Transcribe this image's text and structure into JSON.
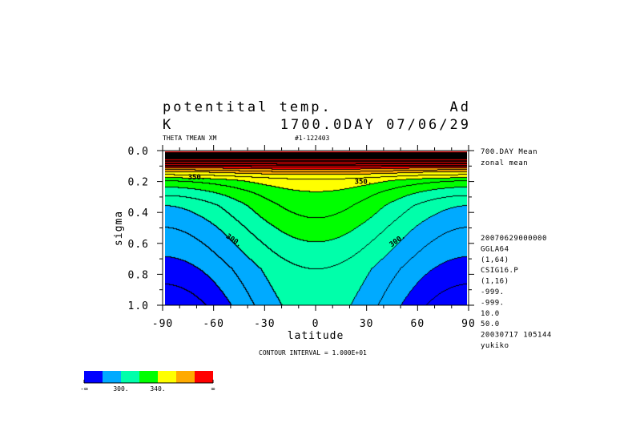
{
  "header": {
    "title": "potentital temp.",
    "title_right": "Ad",
    "units": "K",
    "time": "1700.0DAY 07/06/29",
    "variable": "THETA TMEAN XM",
    "run_id": "#1-122403"
  },
  "side_info": {
    "top": [
      "700.DAY Mean",
      "zonal mean"
    ],
    "bottom": [
      "20070629000000",
      "GGLA64",
      "(1,64)",
      "CSIG16.P",
      "(1,16)",
      "-999.",
      "-999.",
      "10.0",
      "50.0",
      "20030717 105144",
      "yukiko"
    ]
  },
  "contour_interval": "CONTOUR INTERVAL = 1.000E+01",
  "chart_data": {
    "type": "heatmap",
    "subtype": "filled contour",
    "xlabel": "latitude",
    "ylabel": "sigma",
    "xlim": [
      -90,
      90
    ],
    "ylim": [
      1.0,
      0.0
    ],
    "x_ticks": [
      "-90",
      "-60",
      "-30",
      "0",
      "30",
      "60",
      "90"
    ],
    "y_ticks": [
      "0.0",
      "0.2",
      "0.4",
      "0.6",
      "0.8",
      "1.0"
    ],
    "contour_interval": 10,
    "contour_labels": [
      {
        "text": "350.",
        "lat": -70,
        "sigma": 0.17
      },
      {
        "text": "350.",
        "lat": 28,
        "sigma": 0.2
      },
      {
        "text": "300.",
        "lat": -48,
        "sigma": 0.58
      },
      {
        "text": "300.",
        "lat": 48,
        "sigma": 0.58
      }
    ],
    "theta_equator": {
      "sigma": [
        0,
        0.05,
        0.1,
        0.15,
        0.18,
        0.26,
        0.43,
        0.585,
        0.76,
        1.0
      ],
      "theta": [
        600,
        450,
        390,
        360,
        350,
        340,
        330,
        320,
        310,
        305
      ]
    },
    "theta_pole": {
      "sigma": [
        0,
        0.05,
        0.1,
        0.13,
        0.17,
        0.19,
        0.23,
        0.285,
        0.35,
        0.49,
        0.68,
        1.0
      ],
      "theta": [
        600,
        450,
        385,
        360,
        340,
        330,
        320,
        310,
        300,
        290,
        280,
        262
      ]
    },
    "colorbar": {
      "levels": [
        280,
        300,
        320,
        340,
        360,
        380
      ],
      "colors": [
        "#0000ff",
        "#00aaff",
        "#00ffaa",
        "#00ff00",
        "#ffff00",
        "#ffaa00",
        "#ff0000"
      ],
      "labels": [
        "-∞",
        "300.",
        "340.",
        "∞"
      ]
    }
  }
}
